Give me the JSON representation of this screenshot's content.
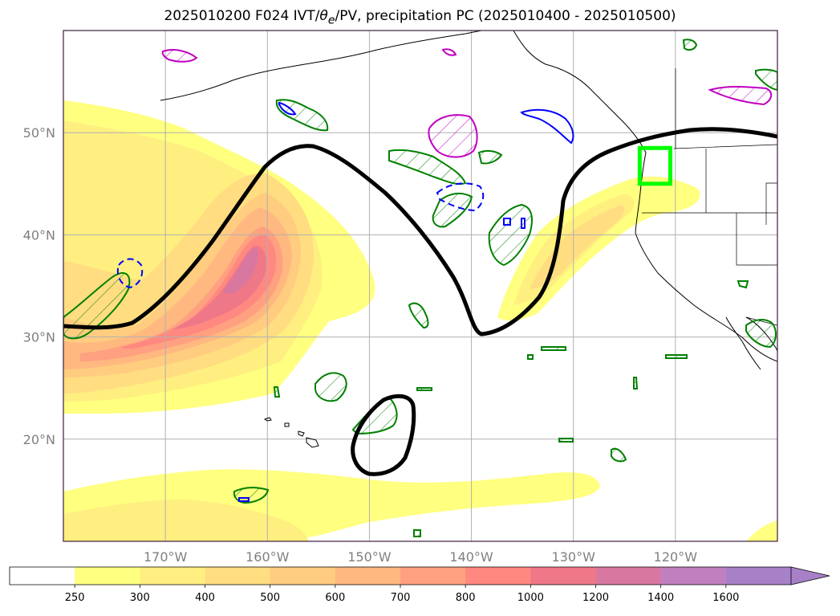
{
  "title": "2025010200 F024 IVT/θe/PV, precipitation PC (2025010400 - 2025010500)",
  "title_parts": {
    "prefix": "2025010200 F024 IVT/",
    "theta": "θ",
    "theta_sub": "e",
    "suffix": "/PV, precipitation PC (2025010400 - 2025010500)"
  },
  "map": {
    "lon_range": [
      -180,
      -110
    ],
    "lat_range": [
      10,
      60
    ],
    "lat_ticks": [
      {
        "lat": 50,
        "label": "50°N"
      },
      {
        "lat": 40,
        "label": "40°N"
      },
      {
        "lat": 30,
        "label": "30°N"
      },
      {
        "lat": 20,
        "label": "20°N"
      }
    ],
    "lon_ticks": [
      {
        "lon": -170,
        "label": "170°W"
      },
      {
        "lon": -160,
        "label": "160°W"
      },
      {
        "lon": -150,
        "label": "150°W"
      },
      {
        "lon": -140,
        "label": "140°W"
      },
      {
        "lon": -130,
        "label": "130°W"
      },
      {
        "lon": -120,
        "label": "120°W"
      }
    ],
    "target_box": {
      "lon": [
        -123.5,
        -120.5
      ],
      "lat": [
        45,
        48.5
      ],
      "color": "#00ff00"
    },
    "colors": {
      "grid": "#b0b0b0",
      "tick_label": "#808080",
      "pv_contour": "#000000",
      "green_contour": "#008000",
      "blue_contour": "#0000ff",
      "magenta_contour": "#c000c0"
    }
  },
  "colorbar": {
    "levels": [
      "250",
      "300",
      "400",
      "500",
      "600",
      "700",
      "800",
      "1000",
      "1200",
      "1400",
      "1600"
    ],
    "colors": [
      "#ffffff",
      "#ffff80",
      "#ffee80",
      "#ffdd80",
      "#ffcc80",
      "#ffb880",
      "#ffa080",
      "#ff8880",
      "#ee7888",
      "#d878a0",
      "#c080c0",
      "#a880c8"
    ],
    "extend": "max"
  }
}
